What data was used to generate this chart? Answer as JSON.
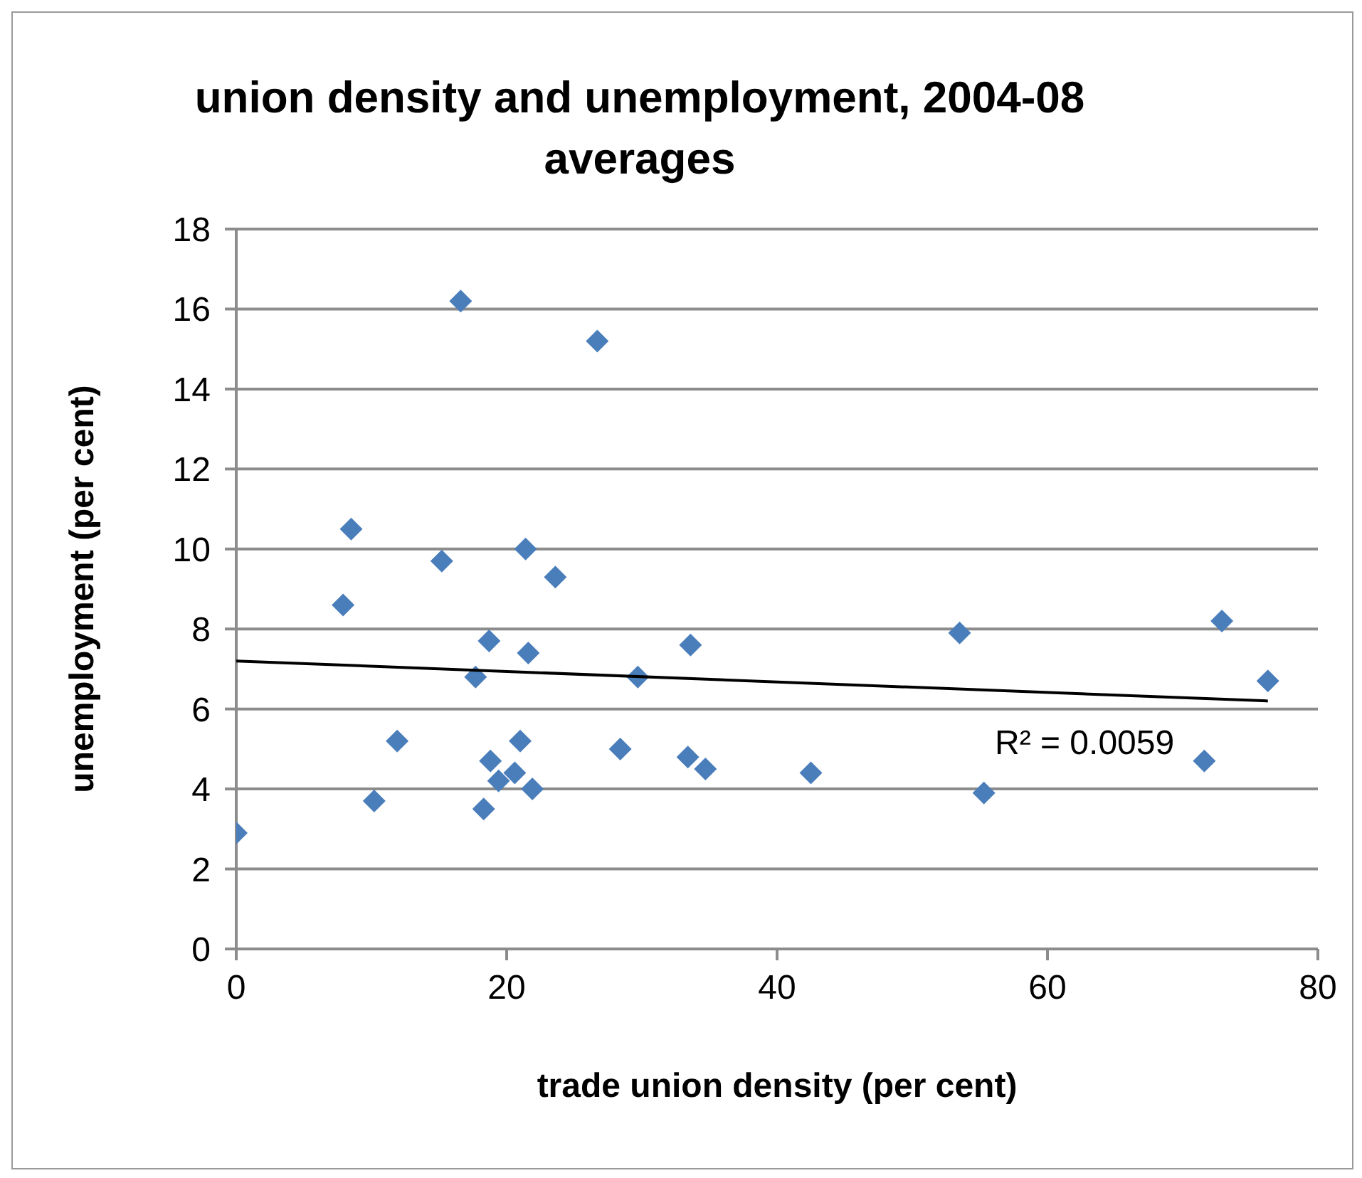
{
  "chart_data": {
    "type": "scatter",
    "title": "union density and unemployment,  2004-08 averages",
    "xlabel": "trade union density (per cent)",
    "ylabel": "unemployment (per cent)",
    "annotations": [
      "R² = 0.0059"
    ],
    "series": [
      {
        "marker": "diamond",
        "color": "#4a7ebb",
        "x": [
          16.6,
          26.7,
          8.5,
          7.9,
          15.2,
          21.4,
          23.6,
          18.7,
          21.6,
          17.7,
          29.7,
          11.9,
          21.0,
          28.4,
          18.8,
          20.6,
          19.4,
          21.9,
          10.2,
          18.3,
          0,
          33.6,
          53.5,
          72.9,
          76.3,
          33.4,
          34.7,
          42.5,
          55.3,
          71.6
        ],
        "values": [
          16.2,
          15.2,
          10.5,
          8.6,
          9.7,
          10.0,
          9.3,
          7.7,
          7.4,
          6.8,
          6.8,
          5.2,
          5.2,
          5.0,
          4.7,
          4.4,
          4.2,
          4.0,
          3.7,
          3.5,
          2.9,
          7.6,
          7.9,
          8.2,
          6.7,
          4.8,
          4.5,
          4.4,
          3.9,
          4.7
        ]
      },
      {
        "type": "line",
        "marker": "none",
        "color": "#000000",
        "x": [
          0,
          76.3
        ],
        "values": [
          7.2,
          6.2
        ]
      }
    ],
    "xlim": [
      0,
      80
    ],
    "xticks": [
      0,
      20,
      40,
      60,
      80
    ],
    "ylim": [
      0,
      18
    ],
    "yticks": [
      0,
      2,
      4,
      6,
      8,
      10,
      12,
      14,
      16,
      18
    ],
    "grid": "y",
    "legend": false
  }
}
